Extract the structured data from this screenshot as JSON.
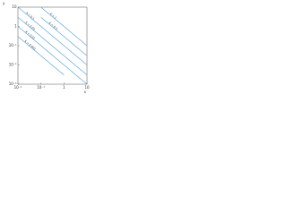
{
  "chart_data": {
    "type": "line",
    "log_scale": true,
    "grid": false,
    "y_label": "y",
    "x_label": "x",
    "x": [
      0.01,
      0.1,
      1,
      10
    ],
    "xlim": [
      0.01,
      10
    ],
    "xticks": [
      {
        "value": 0.01,
        "label": "10⁻²"
      },
      {
        "value": 0.1,
        "label": "10⁻¹"
      },
      {
        "value": 1,
        "label": "1"
      },
      {
        "value": 10,
        "label": "10"
      }
    ],
    "ylim": [
      0.001,
      10
    ],
    "yticks": [
      {
        "value": 0.001,
        "label": "10⁻³"
      },
      {
        "value": 0.01,
        "label": "10⁻²"
      },
      {
        "value": 0.1,
        "label": "10⁻¹"
      },
      {
        "value": 1,
        "label": "1"
      },
      {
        "value": 10,
        "label": "10"
      }
    ],
    "series": [
      {
        "name": "K = 1",
        "color": "#4f9fd4",
        "values": [
          null,
          10,
          1,
          0.1
        ]
      },
      {
        "name": "K = 0.3",
        "color": "#4f9fd4",
        "values": [
          null,
          3,
          0.3,
          0.03
        ]
      },
      {
        "name": "K = 0.1",
        "color": "#4f9fd4",
        "values": [
          10,
          1,
          0.1,
          0.01
        ]
      },
      {
        "name": "K = 0.03",
        "color": "#4f9fd4",
        "values": [
          3,
          0.3,
          0.03,
          0.003
        ]
      },
      {
        "name": "K = 0.01",
        "color": "#4f9fd4",
        "values": [
          1,
          0.1,
          0.01,
          0.001
        ]
      },
      {
        "name": "K = 0.003",
        "color": "#4f9fd4",
        "values": [
          0.3,
          0.03,
          0.003,
          null
        ]
      }
    ]
  }
}
